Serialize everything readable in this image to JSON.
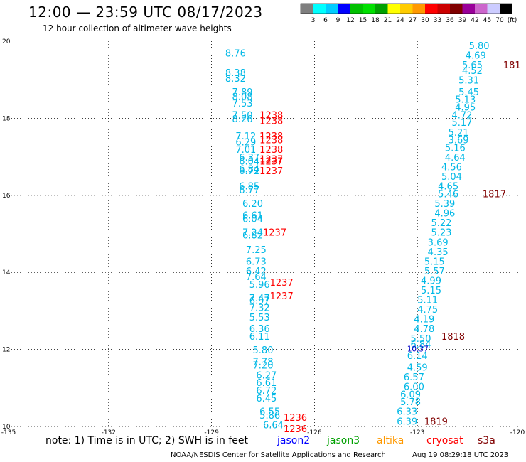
{
  "header": {
    "title": "12:00 — 23:59 UTC 08/17/2023",
    "subtitle": "12 hour collection of altimeter wave heights"
  },
  "legend": {
    "colors": [
      "#7f7f7f",
      "#00ffff",
      "#00ccff",
      "#0000ff",
      "#00c000",
      "#00e000",
      "#00a000",
      "#ffff00",
      "#ffcc00",
      "#ff9900",
      "#ff0000",
      "#cc0000",
      "#800000",
      "#990099",
      "#cc66cc",
      "#ccccff",
      "#000000"
    ],
    "labels": [
      "3",
      "6",
      "9",
      "12",
      "15",
      "18",
      "21",
      "24",
      "27",
      "30",
      "33",
      "36",
      "39",
      "42",
      "45",
      "70",
      "(ft)"
    ]
  },
  "footer": {
    "note": "note: 1) Time is in UTC; 2) SWH is in feet",
    "missions": [
      {
        "name": "jason2",
        "color": "#0000ff"
      },
      {
        "name": "jason3",
        "color": "#00a000"
      },
      {
        "name": "altika",
        "color": "#ff9900"
      },
      {
        "name": "cryosat",
        "color": "#ff0000"
      },
      {
        "name": "s3a",
        "color": "#800000"
      }
    ],
    "credit": "NOAA/NESDIS Center for Satellite Applications and Research",
    "timestamp": "Aug 19 08:29:18 UTC 2023"
  },
  "chart_data": {
    "type": "scatter",
    "title": "12:00 — 23:59 UTC 08/17/2023",
    "subtitle": "12 hour collection of altimeter wave heights",
    "xlim": [
      -135,
      -120
    ],
    "ylim": [
      10,
      20
    ],
    "x_ticks": [
      -135,
      -132,
      -129,
      -126,
      -123,
      -120
    ],
    "x_tick_labels": [
      "-135",
      "-132",
      "-129",
      "-126",
      "-123",
      "-120"
    ],
    "y_ticks": [
      10,
      12,
      14,
      16,
      18,
      20
    ],
    "y_tick_labels": [
      "10",
      "12",
      "14",
      "16",
      "18",
      "20"
    ],
    "grid": true,
    "series": [
      {
        "color": "#00b8e6",
        "points": [
          [
            -128.6,
            19.6,
            "8.76"
          ],
          [
            -128.6,
            19.1,
            "8.38"
          ],
          [
            -128.6,
            18.95,
            "8.32"
          ],
          [
            -128.4,
            18.6,
            "7.89"
          ],
          [
            -128.4,
            18.48,
            "8.08"
          ],
          [
            -128.4,
            18.3,
            "7.53"
          ],
          [
            -128.4,
            18.0,
            "7.50"
          ],
          [
            -128.4,
            17.9,
            "8.26"
          ],
          [
            -128.3,
            17.45,
            "7.12"
          ],
          [
            -128.3,
            17.3,
            "6.29"
          ],
          [
            -128.3,
            17.1,
            "7.01"
          ],
          [
            -128.2,
            16.9,
            "6.37"
          ],
          [
            -128.2,
            16.8,
            "6.04"
          ],
          [
            -128.2,
            16.6,
            "6.84"
          ],
          [
            -128.2,
            16.55,
            "6.72"
          ],
          [
            -128.2,
            16.15,
            "6.85"
          ],
          [
            -128.2,
            16.05,
            "6.77"
          ],
          [
            -128.1,
            15.7,
            "6.20"
          ],
          [
            -128.1,
            15.4,
            "6.61"
          ],
          [
            -128.1,
            15.3,
            "6.04"
          ],
          [
            -128.1,
            14.95,
            "7.24"
          ],
          [
            -128.1,
            14.88,
            "6.82"
          ],
          [
            -128.0,
            14.5,
            "7.25"
          ],
          [
            -128.0,
            14.2,
            "6.73"
          ],
          [
            -128.0,
            13.95,
            "6.42"
          ],
          [
            -128.0,
            13.8,
            "7.64"
          ],
          [
            -127.9,
            13.6,
            "5.96"
          ],
          [
            -127.9,
            13.25,
            "7.47"
          ],
          [
            -127.9,
            13.18,
            "6.97"
          ],
          [
            -127.9,
            13.0,
            "7.32"
          ],
          [
            -127.9,
            12.75,
            "5.53"
          ],
          [
            -127.9,
            12.45,
            "6.36"
          ],
          [
            -127.9,
            12.25,
            "6.11"
          ],
          [
            -127.8,
            11.9,
            "5.80"
          ],
          [
            -127.8,
            11.6,
            "7.78"
          ],
          [
            -127.8,
            11.5,
            "7.20"
          ],
          [
            -127.7,
            11.25,
            "6.27"
          ],
          [
            -127.7,
            11.05,
            "6.61"
          ],
          [
            -127.7,
            10.85,
            "6.72"
          ],
          [
            -127.7,
            10.65,
            "6.45"
          ],
          [
            -127.6,
            10.3,
            "6.55"
          ],
          [
            -127.6,
            10.2,
            "5.86"
          ],
          [
            -127.5,
            9.95,
            "6.64"
          ],
          [
            -121.5,
            19.8,
            "5.80"
          ],
          [
            -121.6,
            19.55,
            "4.69"
          ],
          [
            -121.7,
            19.3,
            "5.65"
          ],
          [
            -121.7,
            19.15,
            "4.52"
          ],
          [
            -121.8,
            18.9,
            "5.31"
          ],
          [
            -121.8,
            18.6,
            "5.45"
          ],
          [
            -121.9,
            18.4,
            "5.13"
          ],
          [
            -121.9,
            18.2,
            "4.95"
          ],
          [
            -122.0,
            18.0,
            "4.72"
          ],
          [
            -122.0,
            17.8,
            "5.17"
          ],
          [
            -122.1,
            17.55,
            "5.21"
          ],
          [
            -122.1,
            17.35,
            "3.69"
          ],
          [
            -122.2,
            17.15,
            "5.16"
          ],
          [
            -122.2,
            16.9,
            "4.64"
          ],
          [
            -122.3,
            16.65,
            "4.56"
          ],
          [
            -122.3,
            16.4,
            "5.04"
          ],
          [
            -122.4,
            16.15,
            "4.65"
          ],
          [
            -122.4,
            15.95,
            "5.46"
          ],
          [
            -122.5,
            15.7,
            "5.39"
          ],
          [
            -122.5,
            15.45,
            "4.96"
          ],
          [
            -122.6,
            15.2,
            "5.22"
          ],
          [
            -122.6,
            14.95,
            "5.23"
          ],
          [
            -122.7,
            14.7,
            "3.69"
          ],
          [
            -122.7,
            14.45,
            "4.35"
          ],
          [
            -122.8,
            14.2,
            "5.15"
          ],
          [
            -122.8,
            13.95,
            "5.57"
          ],
          [
            -122.9,
            13.7,
            "4.99"
          ],
          [
            -122.9,
            13.45,
            "5.15"
          ],
          [
            -123.0,
            13.2,
            "5.11"
          ],
          [
            -123.0,
            12.95,
            "4.75"
          ],
          [
            -123.1,
            12.7,
            "4.19"
          ],
          [
            -123.1,
            12.45,
            "4.78"
          ],
          [
            -123.2,
            12.2,
            "5.50"
          ],
          [
            -123.2,
            12.05,
            "6.84"
          ],
          [
            -123.3,
            11.75,
            "6.14"
          ],
          [
            -123.3,
            11.45,
            "4.59"
          ],
          [
            -123.4,
            11.2,
            "6.57"
          ],
          [
            -123.4,
            10.95,
            "6.00"
          ],
          [
            -123.5,
            10.75,
            "6.09"
          ],
          [
            -123.5,
            10.55,
            "5.78"
          ],
          [
            -123.6,
            10.3,
            "6.33"
          ],
          [
            -123.6,
            10.05,
            "6.39"
          ]
        ]
      },
      {
        "color": "#0000cc",
        "points": [
          [
            -123.3,
            11.95,
            "10.37"
          ]
        ]
      },
      {
        "color": "#ff0000",
        "points": [
          [
            -127.6,
            18.0,
            "1238"
          ],
          [
            -127.6,
            17.85,
            "1238"
          ],
          [
            -127.6,
            17.45,
            "1238"
          ],
          [
            -127.6,
            17.35,
            "1238"
          ],
          [
            -127.6,
            17.1,
            "1238"
          ],
          [
            -127.6,
            16.85,
            "1237"
          ],
          [
            -127.6,
            16.8,
            "1237"
          ],
          [
            -127.6,
            16.55,
            "1237"
          ],
          [
            -127.5,
            14.95,
            "1237"
          ],
          [
            -127.3,
            13.65,
            "1237"
          ],
          [
            -127.3,
            13.3,
            "1237"
          ],
          [
            -126.9,
            10.15,
            "1236"
          ],
          [
            -126.9,
            9.85,
            "1236"
          ]
        ]
      },
      {
        "color": "#800000",
        "points": [
          [
            -120.5,
            19.3,
            "181"
          ],
          [
            -121.1,
            15.95,
            "1817"
          ],
          [
            -122.3,
            12.25,
            "1818"
          ],
          [
            -122.8,
            10.05,
            "1819"
          ]
        ]
      }
    ]
  }
}
